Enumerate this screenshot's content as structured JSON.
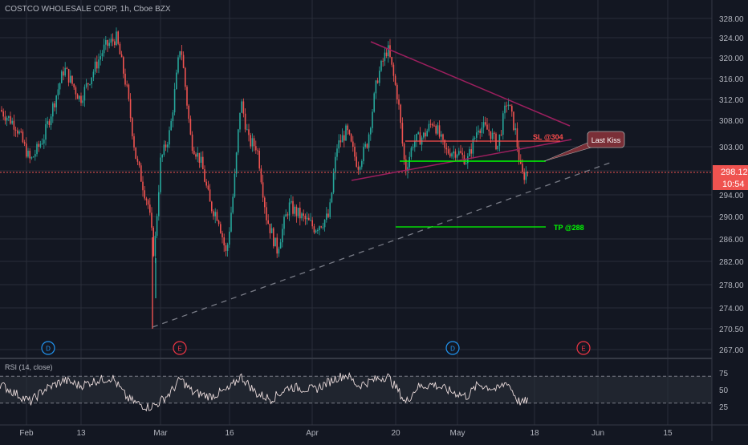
{
  "header": {
    "symbol_title": "COSTCO WHOLESALE CORP, 1h, Cboe BZX"
  },
  "colors": {
    "background": "#131722",
    "grid": "#2a2e39",
    "up": "#26a69a",
    "down": "#ef5350",
    "text": "#b2b5be",
    "wedge": "#9c1f5e",
    "support_green": "#00ff00",
    "sl_red": "#ff4d4d",
    "rsi_line": "#e8d9d9",
    "dashed_trend": "#787b86"
  },
  "price_axis": {
    "ticks": [
      "328.00",
      "324.00",
      "320.00",
      "316.00",
      "312.00",
      "308.00",
      "303.00",
      "298.00",
      "294.00",
      "290.00",
      "286.00",
      "282.00",
      "278.00",
      "274.00",
      "270.50",
      "267.00"
    ],
    "current_price": "298.12",
    "countdown": "10:54"
  },
  "time_axis": {
    "ticks": [
      "Feb",
      "13",
      "Mar",
      "16",
      "Apr",
      "20",
      "May",
      "18",
      "Jun",
      "15"
    ]
  },
  "events": [
    {
      "letter": "D",
      "type": "dividend"
    },
    {
      "letter": "E",
      "type": "earnings"
    },
    {
      "letter": "D",
      "type": "dividend"
    },
    {
      "letter": "E",
      "type": "earnings"
    }
  ],
  "annotations": {
    "sl_label": "SL @304",
    "tp_label": "TP @288",
    "callout": "Last Kiss"
  },
  "rsi": {
    "title": "RSI (14, close)",
    "ticks": [
      "75",
      "50",
      "25"
    ],
    "upper_band": 70,
    "lower_band": 30
  },
  "chart_data": [
    {
      "type": "line",
      "title": "COSTCO WHOLESALE CORP, 1h, Cboe BZX",
      "note": "candlestick price series, approximate close path",
      "x": [
        "Feb",
        "Feb",
        "Feb",
        "13",
        "13",
        "13",
        "Mar",
        "Mar",
        "Mar",
        "16",
        "16",
        "Apr",
        "Apr",
        "Apr",
        "20",
        "20",
        "20",
        "May",
        "May",
        "May",
        "18"
      ],
      "series": [
        {
          "values": [
            310,
            306,
            302,
            318,
            323,
            318,
            292,
            278,
            316,
            282,
            290,
            287,
            306,
            300,
            320,
            302,
            309,
            306,
            310,
            304,
            298.12
          ]
        }
      ],
      "ylim": [
        267,
        330
      ],
      "levels": {
        "sl": 304,
        "tp": 288,
        "current": 298.12
      }
    },
    {
      "type": "line",
      "title": "RSI (14, close)",
      "ylim": [
        20,
        80
      ],
      "bands": [
        30,
        70
      ],
      "series": [
        {
          "values": [
            58,
            40,
            38,
            62,
            70,
            48,
            22,
            32,
            64,
            38,
            55,
            52,
            63,
            58,
            70,
            40,
            60,
            55,
            62,
            42,
            36
          ]
        }
      ]
    }
  ]
}
